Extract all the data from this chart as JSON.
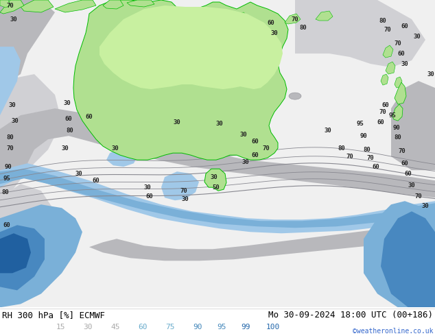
{
  "title_left": "RH 300 hPa [%] ECMWF",
  "title_right": "Mo 30-09-2024 18:00 UTC (00+186)",
  "credit": "©weatheronline.co.uk",
  "colorbar_labels": [
    "15",
    "30",
    "45",
    "60",
    "75",
    "90",
    "95",
    "99",
    "100"
  ],
  "label_colors": [
    "#aaaaaa",
    "#aaaaaa",
    "#aaaaaa",
    "#6aaccc",
    "#6aaccc",
    "#4488bb",
    "#4488bb",
    "#2266aa",
    "#2266aa"
  ],
  "font_size_title": 9,
  "font_size_labels": 8,
  "font_size_credit": 7,
  "bg_color": "#ffffff",
  "ocean_white": "#f0f0f0",
  "gray_medium": "#b8b8bc",
  "gray_light": "#d0d0d4",
  "gray_dark": "#909096",
  "australia_green": "#b0e090",
  "australia_edge_green": "#00bb00",
  "hi_rh_blue_light": "#a0c8e8",
  "hi_rh_blue_mid": "#7ab0d8",
  "hi_rh_blue_dark": "#4888c0",
  "hi_rh_blue_vdark": "#2060a0",
  "contour_gray": "#888890",
  "label_color": "#222222",
  "lfs": 6.5
}
